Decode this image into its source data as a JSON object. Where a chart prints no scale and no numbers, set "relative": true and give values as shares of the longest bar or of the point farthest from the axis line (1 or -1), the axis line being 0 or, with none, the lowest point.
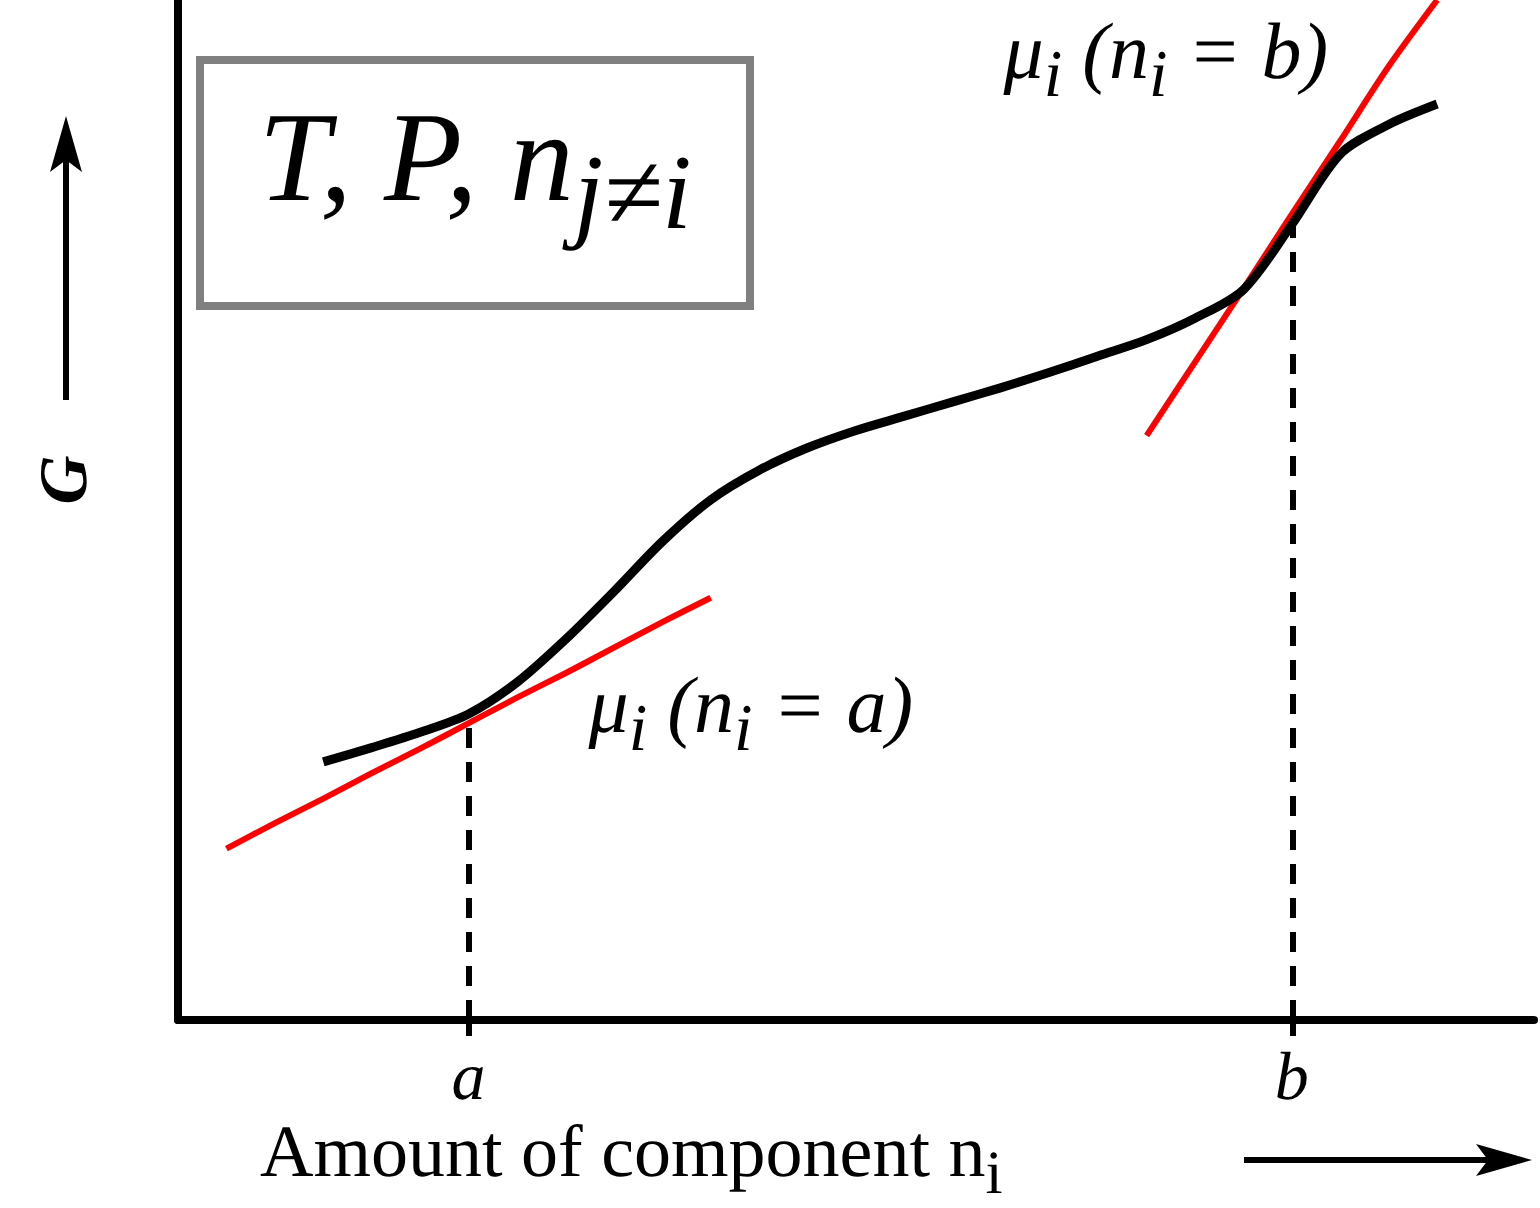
{
  "chart_data": {
    "type": "line",
    "relative": true,
    "xlabel": "Amount of component n$_{i}$",
    "ylabel": "G",
    "annotations": [
      "T, P, n$_{j≠i}$",
      {
        "text": "μ$_{i}$ (n$_{i}$ = a)",
        "x": "a",
        "y": 0.3
      },
      {
        "text": "μ$_{i}$ (n$_{i}$ = b)",
        "x": "b",
        "y": 0.78
      }
    ],
    "categories": [
      null,
      null,
      null,
      null,
      null,
      null,
      "a",
      null,
      null,
      null,
      null,
      null,
      null,
      null,
      null,
      null,
      null,
      null,
      null,
      null,
      null,
      null,
      null,
      "b",
      null,
      null,
      null,
      null,
      null
    ],
    "marker": "none",
    "series": [
      {
        "color": "#000000",
        "values": [
          null,
          null,
          null,
          0.253,
          0.267,
          0.282,
          0.3,
          0.331,
          0.373,
          0.42,
          0.469,
          0.51,
          0.539,
          0.561,
          0.578,
          0.592,
          0.606,
          0.62,
          0.635,
          0.651,
          0.667,
          0.688,
          0.716,
          0.78,
          0.849,
          0.878,
          0.898,
          null,
          null
        ]
      },
      {
        "color": "#ff0000",
        "values": [
          null,
          0.168,
          0.193,
          0.217,
          0.242,
          0.266,
          0.291,
          0.316,
          0.34,
          0.365,
          0.39,
          0.414,
          null,
          null,
          null,
          null,
          null,
          null,
          null,
          null,
          null,
          null,
          null,
          null,
          null,
          null,
          null,
          null,
          null
        ]
      },
      {
        "color": "#ff0000",
        "values": [
          null,
          null,
          null,
          null,
          null,
          null,
          null,
          null,
          null,
          null,
          null,
          null,
          null,
          null,
          null,
          null,
          null,
          null,
          null,
          null,
          0.573,
          0.645,
          0.717,
          0.79,
          0.862,
          0.935,
          1,
          null,
          null
        ]
      }
    ],
    "ref_lines": [
      {
        "axis": "x",
        "value": "a",
        "color": "#000000",
        "line_style": "dashed"
      },
      {
        "axis": "x",
        "value": "b",
        "color": "#000000",
        "line_style": "dashed"
      }
    ]
  }
}
